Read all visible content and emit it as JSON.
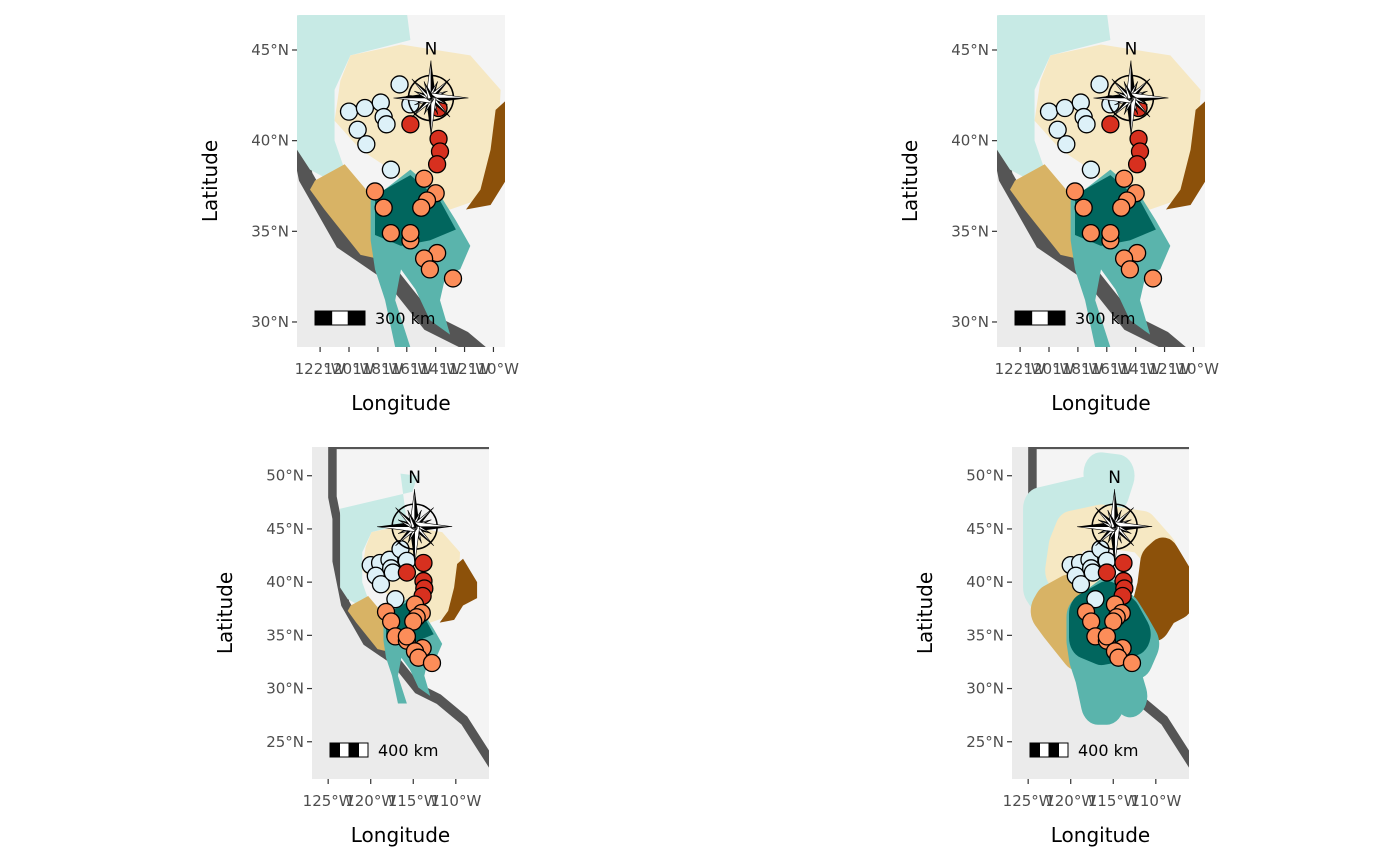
{
  "panels": [
    {
      "style": "filled",
      "xlim": [
        -123.6,
        -109.2
      ],
      "ylim": [
        28.62,
        46.93
      ],
      "xticks": [
        {
          "value": -122,
          "label": "122°W"
        },
        {
          "value": -120,
          "label": "120°W"
        },
        {
          "value": -118,
          "label": "118°W"
        },
        {
          "value": -116,
          "label": "116°W"
        },
        {
          "value": -114,
          "label": "114°W"
        },
        {
          "value": -112,
          "label": "112°W"
        },
        {
          "value": -110,
          "label": "110°W"
        }
      ],
      "yticks": [
        {
          "value": 30,
          "label": "30°N"
        },
        {
          "value": 35,
          "label": "35°N"
        },
        {
          "value": 40,
          "label": "40°N"
        },
        {
          "value": 45,
          "label": "45°N"
        }
      ],
      "xlabel": "Longitude",
      "ylabel": "Latitude",
      "north": "N",
      "scale_label": "300 km"
    },
    {
      "style": "filled",
      "xlim": [
        -123.6,
        -109.2
      ],
      "ylim": [
        28.62,
        46.93
      ],
      "xticks": [
        {
          "value": -122,
          "label": "122°W"
        },
        {
          "value": -120,
          "label": "120°W"
        },
        {
          "value": -118,
          "label": "118°W"
        },
        {
          "value": -116,
          "label": "116°W"
        },
        {
          "value": -114,
          "label": "114°W"
        },
        {
          "value": -112,
          "label": "112°W"
        },
        {
          "value": -110,
          "label": "110°W"
        }
      ],
      "yticks": [
        {
          "value": 30,
          "label": "30°N"
        },
        {
          "value": 35,
          "label": "35°N"
        },
        {
          "value": 40,
          "label": "40°N"
        },
        {
          "value": 45,
          "label": "45°N"
        }
      ],
      "xlabel": "Longitude",
      "ylabel": "Latitude",
      "north": "N",
      "scale_label": "300 km"
    },
    {
      "style": "filled-over",
      "xlim": [
        -126.9,
        -106.1
      ],
      "ylim": [
        21.5,
        52.7
      ],
      "xticks": [
        {
          "value": -125,
          "label": "125°W"
        },
        {
          "value": -120,
          "label": "120°W"
        },
        {
          "value": -115,
          "label": "115°W"
        },
        {
          "value": -110,
          "label": "110°W"
        }
      ],
      "yticks": [
        {
          "value": 25,
          "label": "25°N"
        },
        {
          "value": 30,
          "label": "30°N"
        },
        {
          "value": 35,
          "label": "35°N"
        },
        {
          "value": 40,
          "label": "40°N"
        },
        {
          "value": 45,
          "label": "45°N"
        },
        {
          "value": 50,
          "label": "50°N"
        }
      ],
      "xlabel": "Longitude",
      "ylabel": "Latitude",
      "north": "N",
      "scale_label": "400 km"
    },
    {
      "style": "outline",
      "xlim": [
        -126.9,
        -106.1
      ],
      "ylim": [
        21.5,
        52.7
      ],
      "xticks": [
        {
          "value": -125,
          "label": "125°W"
        },
        {
          "value": -120,
          "label": "120°W"
        },
        {
          "value": -115,
          "label": "115°W"
        },
        {
          "value": -110,
          "label": "110°W"
        }
      ],
      "yticks": [
        {
          "value": 25,
          "label": "25°N"
        },
        {
          "value": 30,
          "label": "30°N"
        },
        {
          "value": 35,
          "label": "35°N"
        },
        {
          "value": 40,
          "label": "40°N"
        },
        {
          "value": 45,
          "label": "45°N"
        },
        {
          "value": 50,
          "label": "50°N"
        }
      ],
      "xlabel": "Longitude",
      "ylabel": "Latitude",
      "north": "N",
      "scale_label": "400 km"
    }
  ],
  "sites": [
    {
      "lon": -120.0,
      "lat": 41.6,
      "color": "#ddf1f8"
    },
    {
      "lon": -118.9,
      "lat": 41.8,
      "color": "#ddf1f8"
    },
    {
      "lon": -117.8,
      "lat": 42.1,
      "color": "#ddf1f8"
    },
    {
      "lon": -119.4,
      "lat": 40.6,
      "color": "#ddf1f8"
    },
    {
      "lon": -118.8,
      "lat": 39.8,
      "color": "#ddf1f8"
    },
    {
      "lon": -117.6,
      "lat": 41.3,
      "color": "#ddf1f8"
    },
    {
      "lon": -117.4,
      "lat": 40.9,
      "color": "#ddf1f8"
    },
    {
      "lon": -116.5,
      "lat": 43.1,
      "color": "#ddf1f8"
    },
    {
      "lon": -115.75,
      "lat": 42.0,
      "color": "#ddf1f8"
    },
    {
      "lon": -117.1,
      "lat": 38.4,
      "color": "#ddf1f8"
    },
    {
      "lon": -115.75,
      "lat": 40.9,
      "color": "#d7301f"
    },
    {
      "lon": -113.8,
      "lat": 41.8,
      "color": "#d7301f"
    },
    {
      "lon": -113.8,
      "lat": 40.1,
      "color": "#d7301f"
    },
    {
      "lon": -113.7,
      "lat": 39.4,
      "color": "#d7301f"
    },
    {
      "lon": -113.9,
      "lat": 38.7,
      "color": "#d7301f"
    },
    {
      "lon": -118.2,
      "lat": 37.2,
      "color": "#fc8d59"
    },
    {
      "lon": -117.6,
      "lat": 36.3,
      "color": "#fc8d59"
    },
    {
      "lon": -114.8,
      "lat": 37.9,
      "color": "#fc8d59"
    },
    {
      "lon": -114.0,
      "lat": 37.1,
      "color": "#fc8d59"
    },
    {
      "lon": -114.6,
      "lat": 36.7,
      "color": "#fc8d59"
    },
    {
      "lon": -115.0,
      "lat": 36.3,
      "color": "#fc8d59"
    },
    {
      "lon": -117.1,
      "lat": 34.9,
      "color": "#fc8d59"
    },
    {
      "lon": -115.75,
      "lat": 34.5,
      "color": "#fc8d59"
    },
    {
      "lon": -115.75,
      "lat": 34.9,
      "color": "#fc8d59"
    },
    {
      "lon": -113.9,
      "lat": 33.8,
      "color": "#fc8d59"
    },
    {
      "lon": -114.8,
      "lat": 33.5,
      "color": "#fc8d59"
    },
    {
      "lon": -114.4,
      "lat": 32.9,
      "color": "#fc8d59"
    },
    {
      "lon": -112.8,
      "lat": 32.4,
      "color": "#fc8d59"
    }
  ]
}
